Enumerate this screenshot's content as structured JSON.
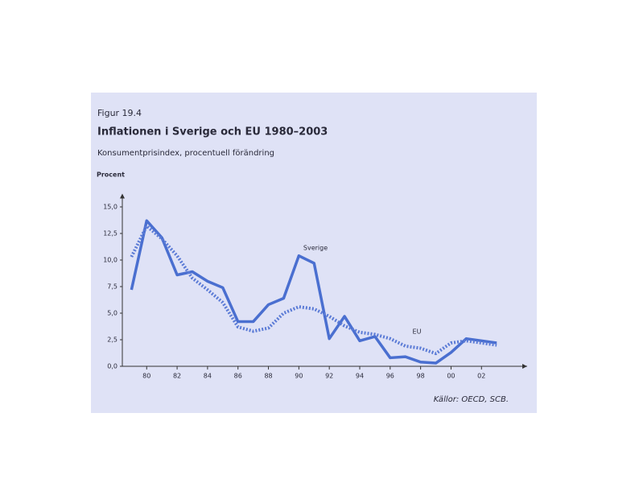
{
  "chart_data": {
    "type": "line",
    "figure_label": "Figur 19.4",
    "title": "Inflationen i Sverige och EU 1980–2003",
    "subtitle": "Konsumentprisindex, procentuell förändring",
    "y_axis_label": "Procent",
    "source": "Källor: OECD, SCB.",
    "x": [
      1979,
      1980,
      1981,
      1982,
      1983,
      1984,
      1985,
      1986,
      1987,
      1988,
      1989,
      1990,
      1991,
      1992,
      1993,
      1994,
      1995,
      1996,
      1997,
      1998,
      1999,
      2000,
      2001,
      2002,
      2003
    ],
    "series": [
      {
        "name": "Sverige",
        "color": "#4a6fd0",
        "style": "solid",
        "values": [
          7.2,
          13.7,
          12.1,
          8.6,
          8.9,
          8.0,
          7.4,
          4.2,
          4.2,
          5.8,
          6.4,
          10.4,
          9.7,
          2.6,
          4.7,
          2.4,
          2.8,
          0.8,
          0.9,
          0.4,
          0.3,
          1.3,
          2.6,
          2.4,
          2.2
        ]
      },
      {
        "name": "EU",
        "color": "#5b7bd6",
        "style": "dotted",
        "values": [
          10.3,
          13.2,
          12.0,
          10.4,
          8.3,
          7.2,
          6.0,
          3.7,
          3.3,
          3.6,
          5.0,
          5.6,
          5.4,
          4.7,
          3.8,
          3.2,
          3.0,
          2.6,
          1.9,
          1.7,
          1.2,
          2.2,
          2.4,
          2.2,
          2.0
        ]
      }
    ],
    "xlim": [
      1978.4,
      2005
    ],
    "xticks": [
      {
        "value": 1980,
        "label": "80"
      },
      {
        "value": 1982,
        "label": "82"
      },
      {
        "value": 1984,
        "label": "84"
      },
      {
        "value": 1986,
        "label": "86"
      },
      {
        "value": 1988,
        "label": "88"
      },
      {
        "value": 1990,
        "label": "90"
      },
      {
        "value": 1992,
        "label": "92"
      },
      {
        "value": 1994,
        "label": "94"
      },
      {
        "value": 1996,
        "label": "96"
      },
      {
        "value": 1998,
        "label": "98"
      },
      {
        "value": 2000,
        "label": "00"
      },
      {
        "value": 2002,
        "label": "02"
      }
    ],
    "ylim": [
      0,
      15.8
    ],
    "yticks": [
      {
        "value": 0,
        "label": "0,0"
      },
      {
        "value": 2.5,
        "label": "2,5"
      },
      {
        "value": 5,
        "label": "5,0"
      },
      {
        "value": 7.5,
        "label": "7,5"
      },
      {
        "value": 10,
        "label": "10,0"
      },
      {
        "value": 12.5,
        "label": "12,5"
      },
      {
        "value": 15,
        "label": "15,0"
      }
    ],
    "grid": false
  }
}
